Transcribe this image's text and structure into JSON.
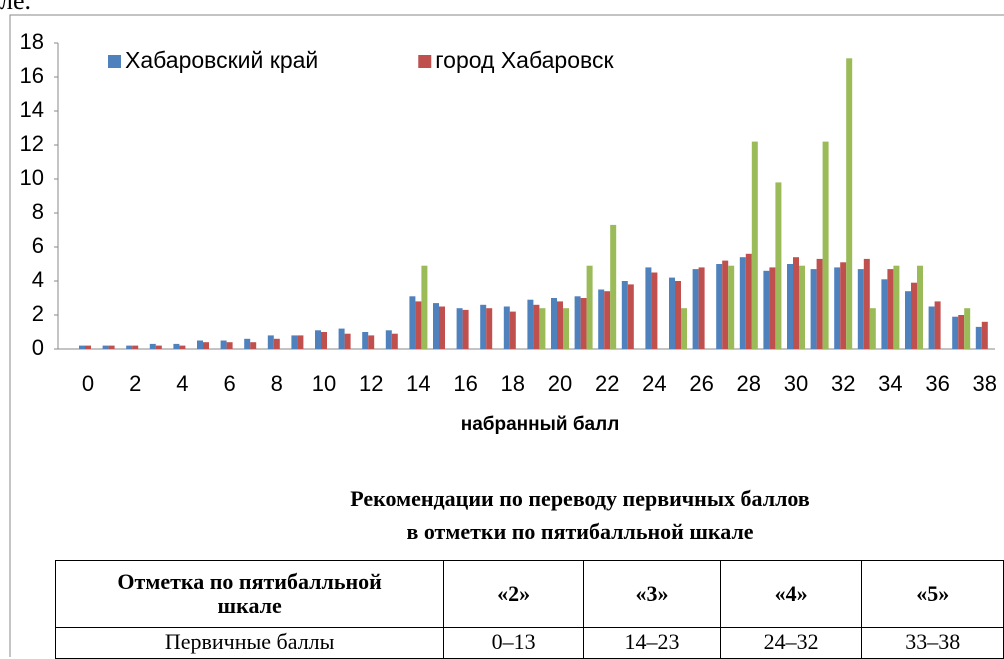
{
  "fragment": "ле.",
  "chart_data": {
    "type": "bar",
    "x_label": "набранный балл",
    "categories": [
      "0",
      null,
      "2",
      null,
      "4",
      null,
      "6",
      null,
      "8",
      null,
      "10",
      null,
      "12",
      null,
      "14",
      null,
      "16",
      null,
      "18",
      null,
      "20",
      null,
      "22",
      null,
      "24",
      null,
      "26",
      null,
      "28",
      null,
      "30",
      null,
      "32",
      null,
      "34",
      null,
      "36",
      null,
      "38"
    ],
    "series": [
      {
        "name": "Хабаровский край",
        "color": "#4f81bd",
        "values": [
          0.2,
          0.2,
          0.2,
          0.3,
          0.3,
          0.5,
          0.5,
          0.6,
          0.8,
          0.8,
          1.1,
          1.2,
          1.0,
          1.1,
          3.1,
          2.7,
          2.4,
          2.6,
          2.5,
          2.9,
          3.0,
          3.1,
          3.5,
          4.0,
          4.8,
          4.2,
          4.7,
          5.0,
          5.4,
          4.6,
          5.0,
          4.7,
          4.8,
          4.7,
          4.1,
          3.4,
          2.5,
          1.9,
          1.3
        ]
      },
      {
        "name": "город Хабаровск",
        "color": "#c0504d",
        "values": [
          0.2,
          0.2,
          0.2,
          0.2,
          0.2,
          0.4,
          0.4,
          0.4,
          0.6,
          0.8,
          1.0,
          0.9,
          0.8,
          0.9,
          2.8,
          2.5,
          2.3,
          2.4,
          2.2,
          2.6,
          2.8,
          3.0,
          3.4,
          3.8,
          4.5,
          4.0,
          4.8,
          5.2,
          5.6,
          4.8,
          5.4,
          5.3,
          5.1,
          5.3,
          4.7,
          3.9,
          2.8,
          2.0,
          1.6
        ]
      },
      {
        "color": "#9bbb59",
        "values": [
          null,
          null,
          null,
          null,
          null,
          null,
          null,
          null,
          null,
          null,
          null,
          null,
          null,
          null,
          4.9,
          null,
          null,
          null,
          null,
          2.4,
          2.4,
          4.9,
          7.3,
          null,
          null,
          2.4,
          null,
          4.9,
          12.2,
          9.8,
          4.9,
          12.2,
          17.1,
          2.4,
          4.9,
          4.9,
          null,
          2.4,
          null
        ]
      }
    ],
    "ylim": [
      0,
      18
    ],
    "yticks": [
      0,
      2,
      4,
      6,
      8,
      10,
      12,
      14,
      16,
      18
    ],
    "grid": false,
    "legend": "top-left"
  },
  "heading": [
    "Рекомендации по переводу первичных баллов",
    "в отметки по пятибалльной шкале"
  ],
  "table": {
    "header": [
      "Отметка по пятибалльной шкале",
      "«2»",
      "«3»",
      "«4»",
      "«5»"
    ],
    "rows": [
      [
        "Первичные баллы",
        "0–13",
        "14–23",
        "24–32",
        "33–38"
      ]
    ]
  }
}
